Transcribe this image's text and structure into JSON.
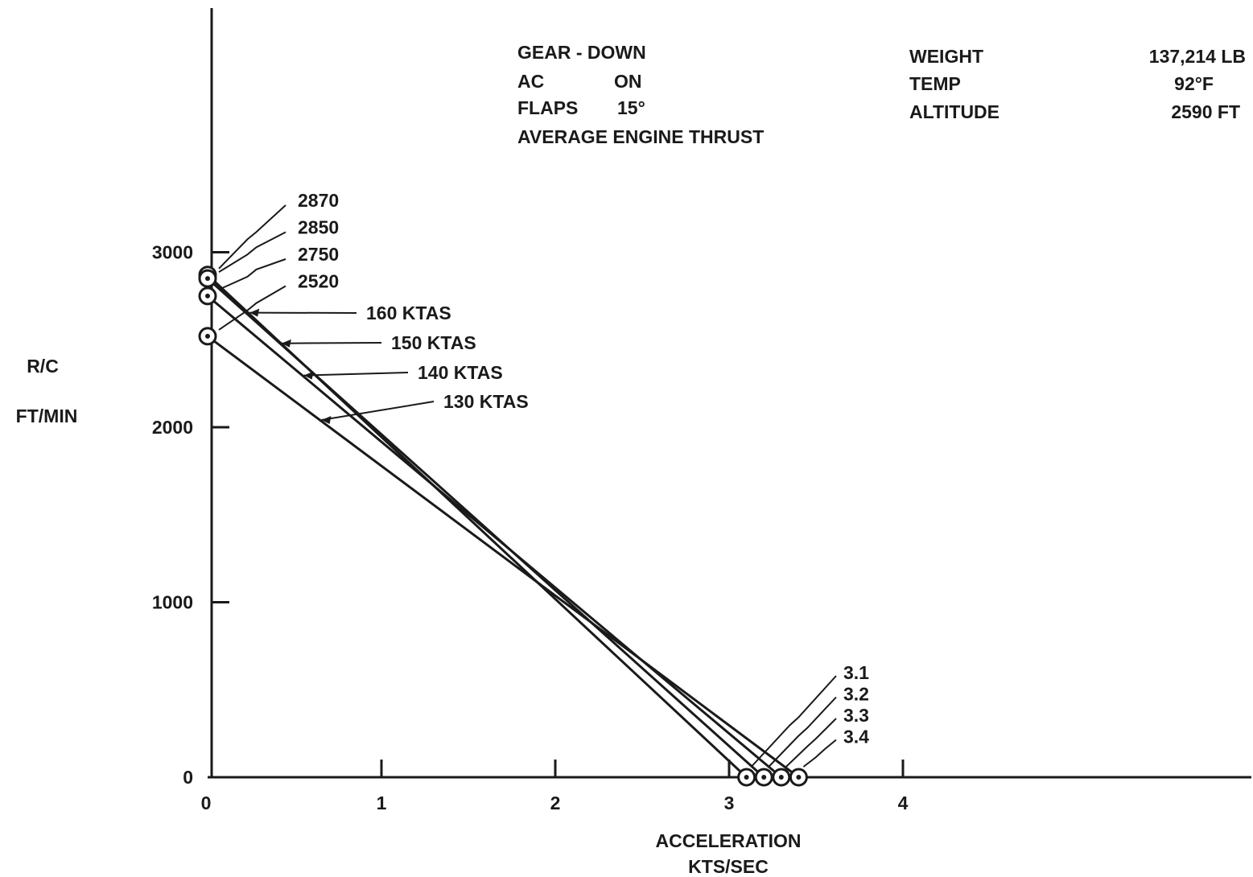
{
  "chart_data": {
    "type": "line",
    "xlabel_line1": "ACCELERATION",
    "xlabel_line2": "KTS/SEC",
    "ylabel_line1": "R/C",
    "ylabel_line2": "FT/MIN",
    "xlim": [
      0,
      6
    ],
    "ylim": [
      0,
      3300
    ],
    "x_ticks": [
      0,
      1,
      2,
      3,
      4
    ],
    "x_tick_labels": [
      "0",
      "1",
      "2",
      "3",
      "4"
    ],
    "y_ticks": [
      0,
      1000,
      2000,
      3000
    ],
    "y_tick_labels": [
      "0",
      "1000",
      "2000",
      "3000"
    ],
    "grid": false,
    "legend": "none",
    "series": [
      {
        "name": "160 KTAS",
        "rc_label": "2870",
        "acc_label": "3.1",
        "x": [
          0,
          3.1
        ],
        "y": [
          2870,
          0
        ]
      },
      {
        "name": "150 KTAS",
        "rc_label": "2850",
        "acc_label": "3.2",
        "x": [
          0,
          3.2
        ],
        "y": [
          2850,
          0
        ]
      },
      {
        "name": "140 KTAS",
        "rc_label": "2750",
        "acc_label": "3.3",
        "x": [
          0,
          3.3
        ],
        "y": [
          2750,
          0
        ]
      },
      {
        "name": "130 KTAS",
        "rc_label": "2520",
        "acc_label": "3.4",
        "x": [
          0,
          3.4
        ],
        "y": [
          2520,
          0
        ]
      }
    ],
    "conditions": [
      {
        "label": "GEAR - DOWN",
        "value": ""
      },
      {
        "label": "AC",
        "value": "ON"
      },
      {
        "label": "FLAPS",
        "value": "15°"
      },
      {
        "label": "AVERAGE ENGINE THRUST",
        "value": ""
      }
    ],
    "parameters": [
      {
        "label": "WEIGHT",
        "value": "137,214 LB"
      },
      {
        "label": "TEMP",
        "value": "92°F"
      },
      {
        "label": "ALTITUDE",
        "value": "2590 FT"
      }
    ]
  }
}
